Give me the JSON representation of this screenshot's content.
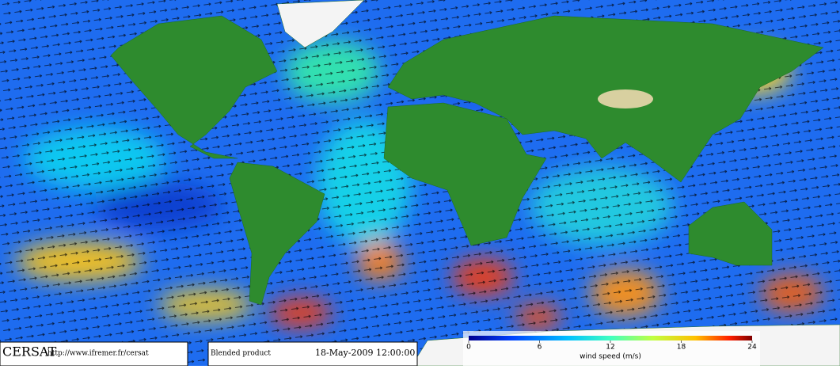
{
  "footer": {
    "logo": "CERSAT",
    "url": "http://www.ifremer.fr/cersat",
    "product": "Blended product",
    "date": "18-May-2009 12:00:00"
  },
  "colorbar": {
    "label": "wind speed (m/s)",
    "lim": [
      0,
      24
    ],
    "ticks": [
      0,
      6,
      12,
      18,
      24
    ]
  }
}
